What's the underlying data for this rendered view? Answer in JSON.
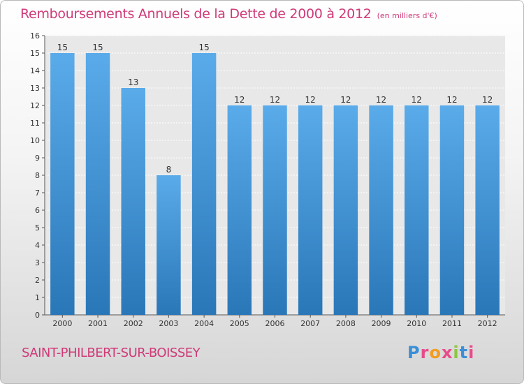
{
  "header": {
    "title": "Remboursements Annuels de la Dette de 2000 à 2012",
    "subtitle": "(en milliers d'€)"
  },
  "footer": {
    "place": "SAINT-PHILBERT-SUR-BOISSEY",
    "logo_letters": [
      "P",
      "r",
      "o",
      "x",
      "i",
      "t",
      "i"
    ],
    "logo_colors": [
      "#3a8fd6",
      "#e94b8a",
      "#f39c1f",
      "#e94b8a",
      "#8cc63f",
      "#3a8fd6",
      "#e94b8a"
    ]
  },
  "chart_data": {
    "type": "bar",
    "title": "Remboursements Annuels de la Dette de 2000 à 2012",
    "categories": [
      "2000",
      "2001",
      "2002",
      "2003",
      "2004",
      "2005",
      "2006",
      "2007",
      "2008",
      "2009",
      "2010",
      "2011",
      "2012"
    ],
    "values": [
      15,
      15,
      13,
      8,
      15,
      12,
      12,
      12,
      12,
      12,
      12,
      12,
      12
    ],
    "value_labels": [
      "15",
      "15",
      "13",
      "8",
      "15",
      "12",
      "12",
      "12",
      "12",
      "12",
      "12",
      "12",
      "12"
    ],
    "ylim": [
      0,
      16
    ],
    "yticks": [
      "0",
      "1",
      "2",
      "3",
      "4",
      "5",
      "6",
      "7",
      "8",
      "9",
      "10",
      "11",
      "12",
      "13",
      "14",
      "15",
      "16"
    ],
    "grid": true,
    "bar_color_light": "#5aabea",
    "bar_color_dark": "#2a77b8",
    "plot_background": "#e8e8e8"
  }
}
